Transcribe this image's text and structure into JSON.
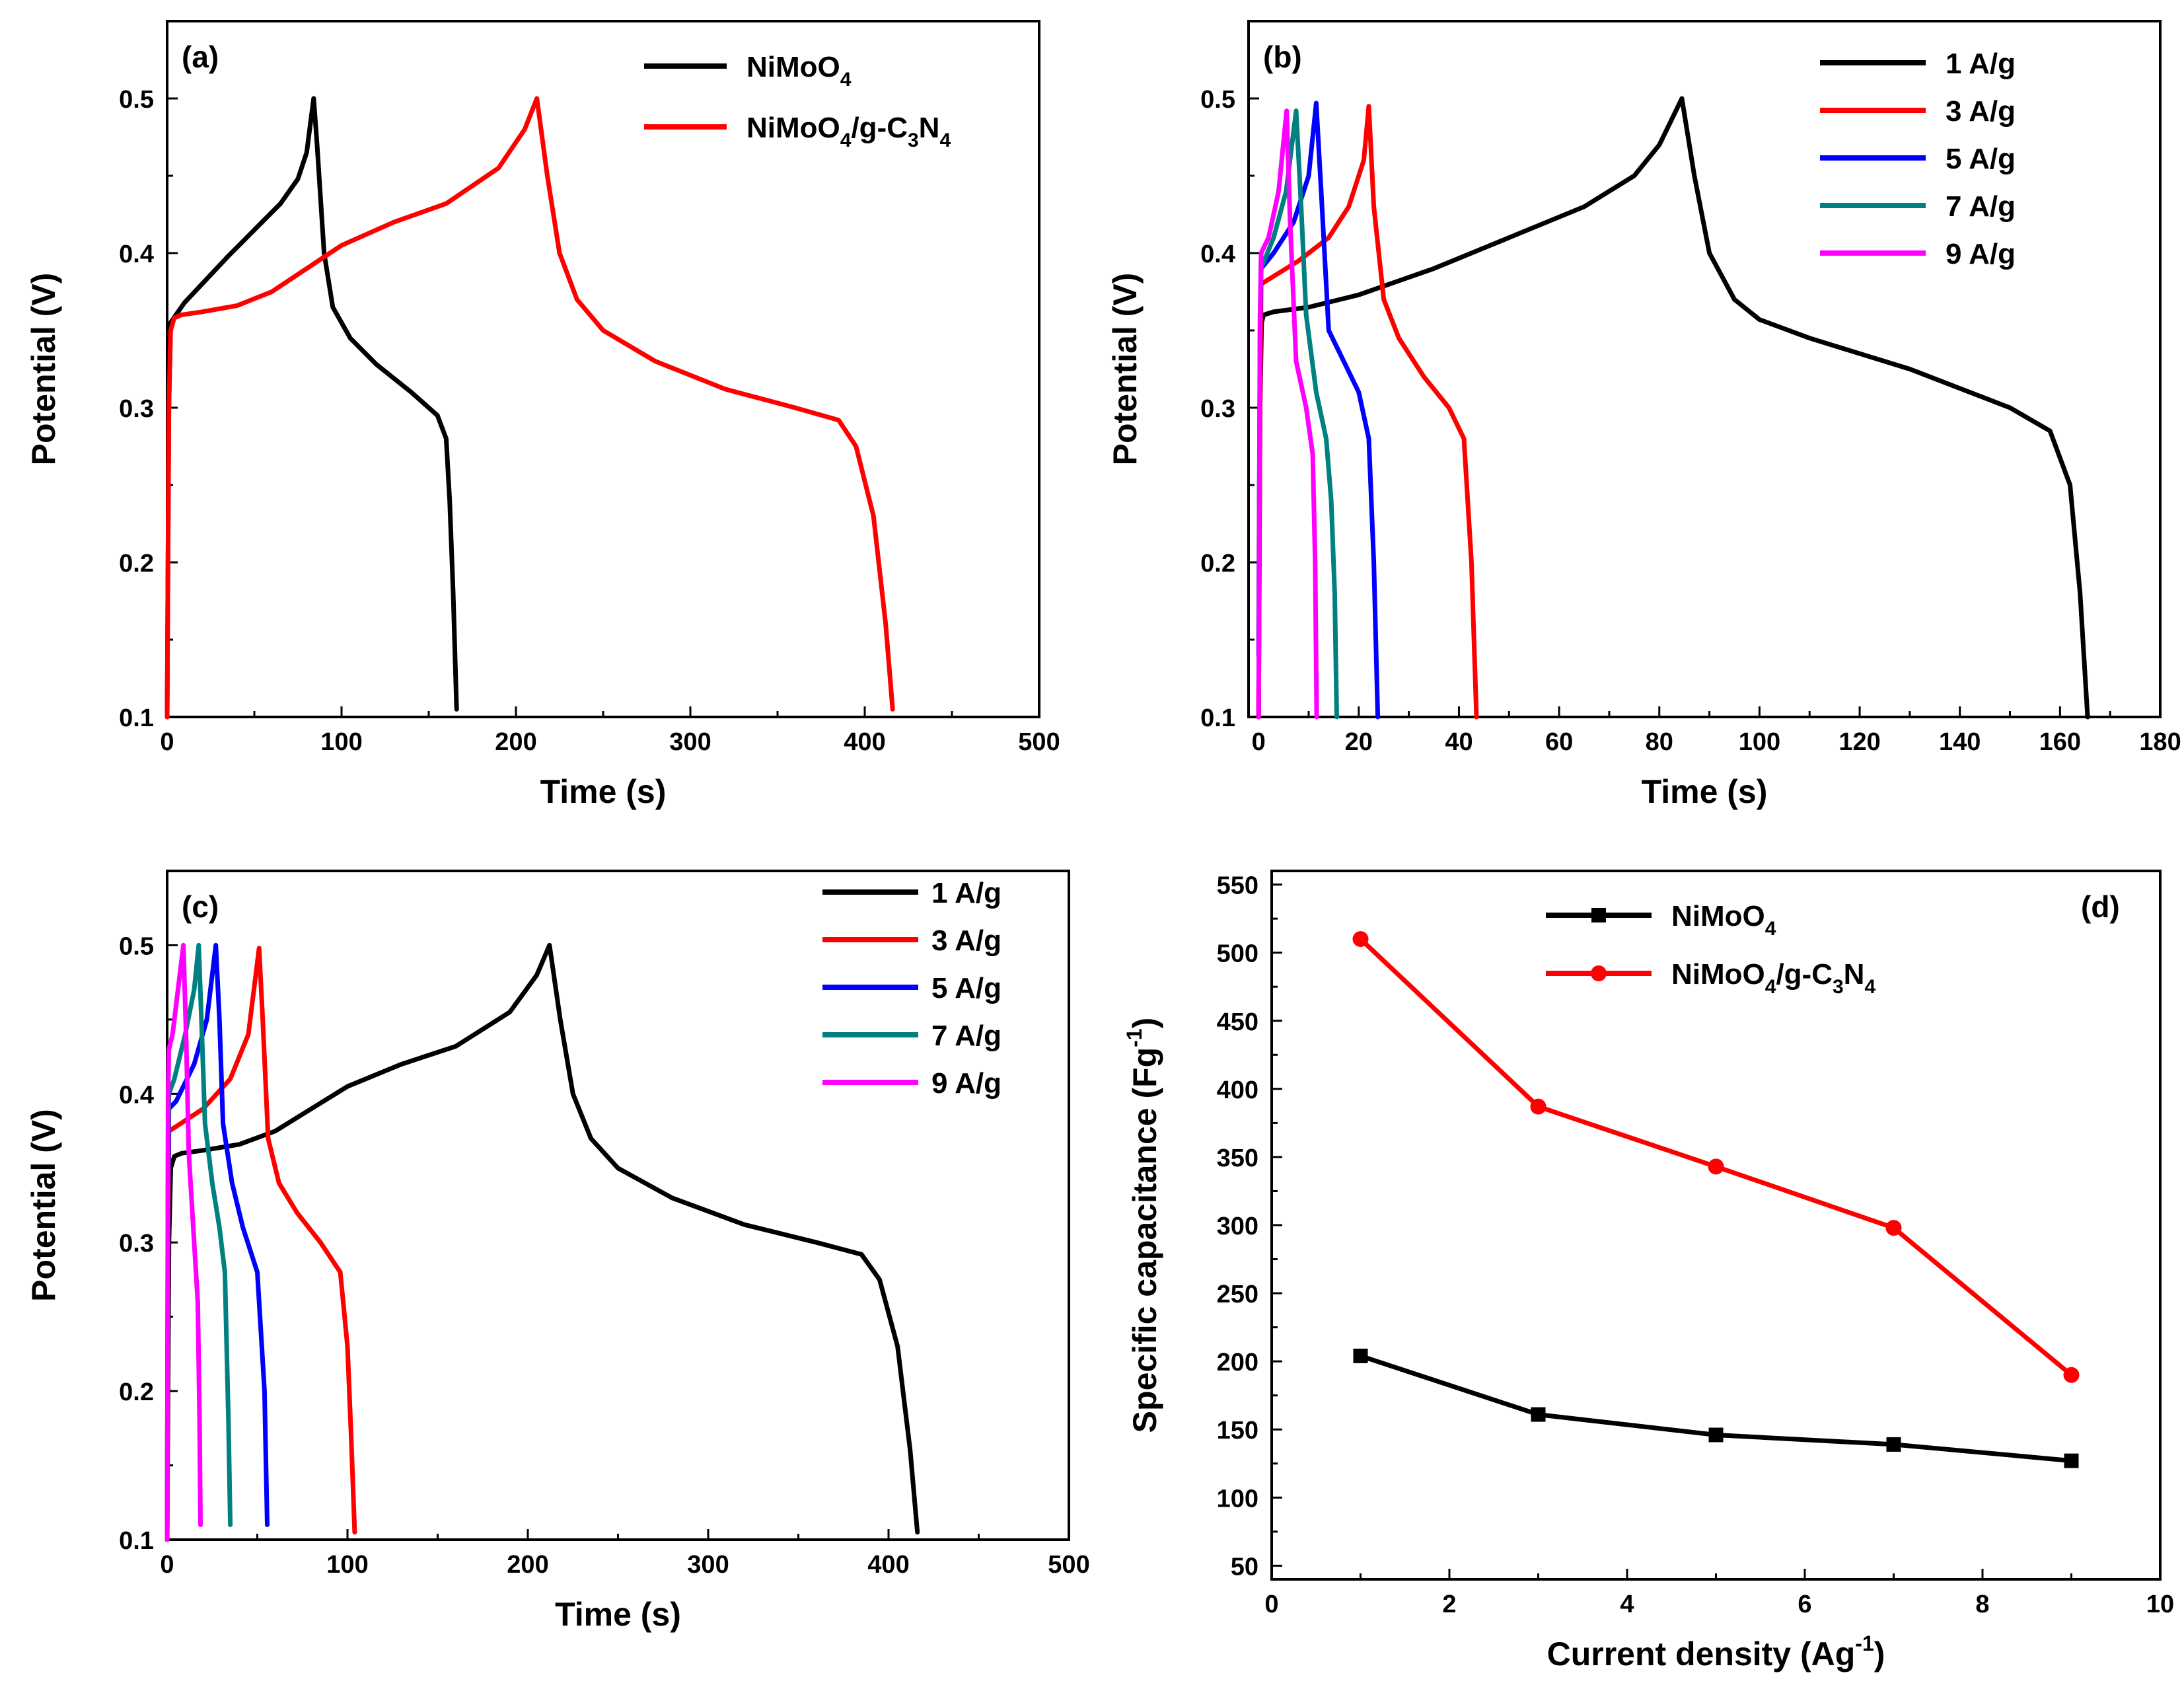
{
  "chart_data": [
    {
      "panel": "(a)",
      "type": "line",
      "xlabel": "Time (s)",
      "ylabel": "Potential (V)",
      "xlim": [
        0,
        500
      ],
      "ylim": [
        0.1,
        0.55
      ],
      "xticks": [
        0,
        100,
        200,
        300,
        400,
        500
      ],
      "yticks": [
        0.1,
        0.2,
        0.3,
        0.4,
        0.5
      ],
      "xtick_labels": [
        "0",
        "100",
        "200",
        "300",
        "400",
        "500"
      ],
      "ytick_labels": [
        "0.1",
        "0.2",
        "0.3",
        "0.4",
        "0.5"
      ],
      "legend_position": "top-right",
      "series": [
        {
          "name": "NiMoO4",
          "label": "NiMoO",
          "sub1": "4",
          "mid": "",
          "sub2": "",
          "tail": "",
          "color": "#000000",
          "x": [
            0,
            1,
            2,
            5,
            10,
            20,
            35,
            50,
            65,
            75,
            80,
            84,
            86,
            90,
            95,
            105,
            120,
            140,
            155,
            160,
            162,
            164,
            166
          ],
          "y": [
            0.1,
            0.3,
            0.355,
            0.36,
            0.368,
            0.38,
            0.398,
            0.415,
            0.432,
            0.448,
            0.465,
            0.5,
            0.47,
            0.4,
            0.365,
            0.345,
            0.328,
            0.31,
            0.295,
            0.28,
            0.24,
            0.18,
            0.105
          ]
        },
        {
          "name": "NiMoO4/g-C3N4",
          "label": "NiMoO",
          "sub1": "4",
          "mid": "/g-C",
          "sub2": "3",
          "tail": "N",
          "sub3": "4",
          "color": "#ff0000",
          "x": [
            0,
            1,
            2,
            4,
            8,
            20,
            40,
            60,
            80,
            100,
            130,
            160,
            190,
            205,
            212,
            218,
            225,
            235,
            250,
            280,
            320,
            360,
            385,
            395,
            405,
            412,
            416
          ],
          "y": [
            0.1,
            0.3,
            0.35,
            0.358,
            0.36,
            0.362,
            0.366,
            0.375,
            0.39,
            0.405,
            0.42,
            0.432,
            0.455,
            0.48,
            0.5,
            0.45,
            0.4,
            0.37,
            0.35,
            0.33,
            0.312,
            0.3,
            0.292,
            0.275,
            0.23,
            0.16,
            0.105
          ]
        }
      ]
    },
    {
      "panel": "(b)",
      "type": "line",
      "xlabel": "Time (s)",
      "ylabel": "Potential (V)",
      "xlim": [
        -2,
        180
      ],
      "ylim": [
        0.1,
        0.55
      ],
      "xticks": [
        0,
        20,
        40,
        60,
        80,
        100,
        120,
        140,
        160,
        180
      ],
      "yticks": [
        0.1,
        0.2,
        0.3,
        0.4,
        0.5
      ],
      "xtick_labels": [
        "0",
        "20",
        "40",
        "60",
        "80",
        "100",
        "120",
        "140",
        "160",
        "180"
      ],
      "ytick_labels": [
        "0.1",
        "0.2",
        "0.3",
        "0.4",
        "0.5"
      ],
      "legend_position": "top-right",
      "series": [
        {
          "name": "1 A/g",
          "color": "#000000",
          "x": [
            0,
            0.3,
            0.6,
            1,
            3,
            10,
            20,
            35,
            50,
            65,
            75,
            80,
            84.5,
            87,
            90,
            95,
            100,
            110,
            130,
            150,
            158,
            162,
            164,
            165.5
          ],
          "y": [
            0.1,
            0.3,
            0.355,
            0.36,
            0.362,
            0.365,
            0.373,
            0.39,
            0.41,
            0.43,
            0.45,
            0.47,
            0.5,
            0.45,
            0.4,
            0.37,
            0.357,
            0.345,
            0.325,
            0.3,
            0.285,
            0.25,
            0.18,
            0.1
          ]
        },
        {
          "name": "3 A/g",
          "color": "#ff0000",
          "x": [
            0,
            0.3,
            0.5,
            2,
            8,
            14,
            18,
            21,
            22,
            23,
            25,
            28,
            33,
            38,
            41,
            42.5,
            43.5
          ],
          "y": [
            0.1,
            0.3,
            0.38,
            0.383,
            0.395,
            0.41,
            0.43,
            0.46,
            0.495,
            0.43,
            0.37,
            0.345,
            0.32,
            0.3,
            0.28,
            0.2,
            0.1
          ]
        },
        {
          "name": "5 A/g",
          "color": "#0000ff",
          "x": [
            0,
            0.3,
            0.5,
            3,
            7,
            10,
            11.5,
            12.5,
            14,
            17,
            20,
            22,
            23,
            23.8
          ],
          "y": [
            0.14,
            0.35,
            0.39,
            0.4,
            0.42,
            0.45,
            0.497,
            0.44,
            0.35,
            0.33,
            0.31,
            0.28,
            0.2,
            0.1
          ]
        },
        {
          "name": "7 A/g",
          "color": "#008080",
          "x": [
            0,
            0.3,
            0.5,
            3,
            5.5,
            7.5,
            8.5,
            9.5,
            11.5,
            13.5,
            14.5,
            15.2,
            15.6
          ],
          "y": [
            0.15,
            0.36,
            0.39,
            0.41,
            0.44,
            0.492,
            0.43,
            0.36,
            0.31,
            0.28,
            0.24,
            0.18,
            0.1
          ]
        },
        {
          "name": "9 A/g",
          "color": "#ff00ff",
          "x": [
            0,
            0.3,
            0.5,
            2,
            4,
            5.6,
            6.3,
            7.5,
            9.5,
            10.8,
            11.3,
            11.6
          ],
          "y": [
            0.1,
            0.36,
            0.4,
            0.41,
            0.44,
            0.492,
            0.42,
            0.33,
            0.3,
            0.27,
            0.2,
            0.1
          ]
        }
      ]
    },
    {
      "panel": "(c)",
      "type": "line",
      "xlabel": "Time (s)",
      "ylabel": "Potential (V)",
      "xlim": [
        0,
        500
      ],
      "ylim": [
        0.1,
        0.55
      ],
      "xticks": [
        0,
        100,
        200,
        300,
        400,
        500
      ],
      "yticks": [
        0.1,
        0.2,
        0.3,
        0.4,
        0.5
      ],
      "xtick_labels": [
        "0",
        "100",
        "200",
        "300",
        "400",
        "500"
      ],
      "ytick_labels": [
        "0.1",
        "0.2",
        "0.3",
        "0.4",
        "0.5"
      ],
      "legend_position": "top-right",
      "series": [
        {
          "name": "1 A/g",
          "color": "#000000",
          "x": [
            0,
            1,
            2,
            4,
            8,
            20,
            40,
            60,
            80,
            100,
            130,
            160,
            190,
            205,
            212,
            218,
            225,
            235,
            250,
            280,
            320,
            360,
            385,
            395,
            405,
            412,
            416
          ],
          "y": [
            0.1,
            0.3,
            0.35,
            0.358,
            0.36,
            0.362,
            0.366,
            0.375,
            0.39,
            0.405,
            0.42,
            0.432,
            0.455,
            0.48,
            0.5,
            0.45,
            0.4,
            0.37,
            0.35,
            0.33,
            0.312,
            0.3,
            0.292,
            0.275,
            0.23,
            0.16,
            0.105
          ]
        },
        {
          "name": "3 A/g",
          "color": "#ff0000",
          "x": [
            0,
            0.5,
            1,
            5,
            20,
            35,
            45,
            51,
            53,
            56,
            62,
            72,
            85,
            96,
            100,
            102,
            104
          ],
          "y": [
            0.1,
            0.3,
            0.375,
            0.378,
            0.39,
            0.41,
            0.44,
            0.498,
            0.45,
            0.37,
            0.34,
            0.32,
            0.3,
            0.28,
            0.23,
            0.17,
            0.105
          ]
        },
        {
          "name": "5 A/g",
          "color": "#0000ff",
          "x": [
            0,
            0.5,
            1,
            5,
            15,
            22,
            27,
            29,
            31,
            36,
            42,
            50,
            54,
            55.5
          ],
          "y": [
            0.1,
            0.33,
            0.39,
            0.395,
            0.42,
            0.45,
            0.5,
            0.45,
            0.38,
            0.34,
            0.31,
            0.28,
            0.2,
            0.11
          ]
        },
        {
          "name": "7 A/g",
          "color": "#008080",
          "x": [
            0,
            0.5,
            1,
            4,
            10,
            15,
            17.5,
            19,
            21,
            25,
            29,
            32,
            34,
            35
          ],
          "y": [
            0.1,
            0.36,
            0.4,
            0.41,
            0.44,
            0.47,
            0.5,
            0.45,
            0.38,
            0.34,
            0.31,
            0.28,
            0.18,
            0.11
          ]
        },
        {
          "name": "9 A/g",
          "color": "#ff00ff",
          "x": [
            0,
            0.5,
            1,
            3,
            6,
            9,
            10.5,
            12,
            15,
            17,
            18,
            18.5
          ],
          "y": [
            0.1,
            0.4,
            0.43,
            0.44,
            0.47,
            0.5,
            0.44,
            0.36,
            0.3,
            0.26,
            0.18,
            0.11
          ]
        }
      ]
    },
    {
      "panel": "(d)",
      "type": "line",
      "xlabel": "Current density (Ag",
      "xlabel_sup": "-1",
      "xlabel_tail": ")",
      "ylabel": "Specific capacitance (Fg",
      "ylabel_sup": "-1",
      "ylabel_tail": ")",
      "xlim": [
        0,
        10
      ],
      "ylim": [
        40,
        560
      ],
      "xticks": [
        0,
        2,
        4,
        6,
        8,
        10
      ],
      "yticks": [
        50,
        100,
        150,
        200,
        250,
        300,
        350,
        400,
        450,
        500,
        550
      ],
      "xtick_labels": [
        "0",
        "2",
        "4",
        "6",
        "8",
        "10"
      ],
      "ytick_labels": [
        "50",
        "100",
        "150",
        "200",
        "250",
        "300",
        "350",
        "400",
        "450",
        "500",
        "550"
      ],
      "legend_position": "top-left",
      "series": [
        {
          "name": "NiMoO4",
          "label": "NiMoO",
          "sub1": "4",
          "mid": "",
          "sub2": "",
          "tail": "",
          "color": "#000000",
          "marker": "square",
          "x": [
            1,
            3,
            5,
            7,
            9
          ],
          "y": [
            204,
            161,
            146,
            139,
            127
          ]
        },
        {
          "name": "NiMoO4/g-C3N4",
          "label": "NiMoO",
          "sub1": "4",
          "mid": "/g-C",
          "sub2": "3",
          "tail": "N",
          "sub3": "4",
          "color": "#ff0000",
          "marker": "circle",
          "x": [
            1,
            3,
            5,
            7,
            9
          ],
          "y": [
            510,
            387,
            343,
            298,
            190
          ]
        }
      ]
    }
  ]
}
